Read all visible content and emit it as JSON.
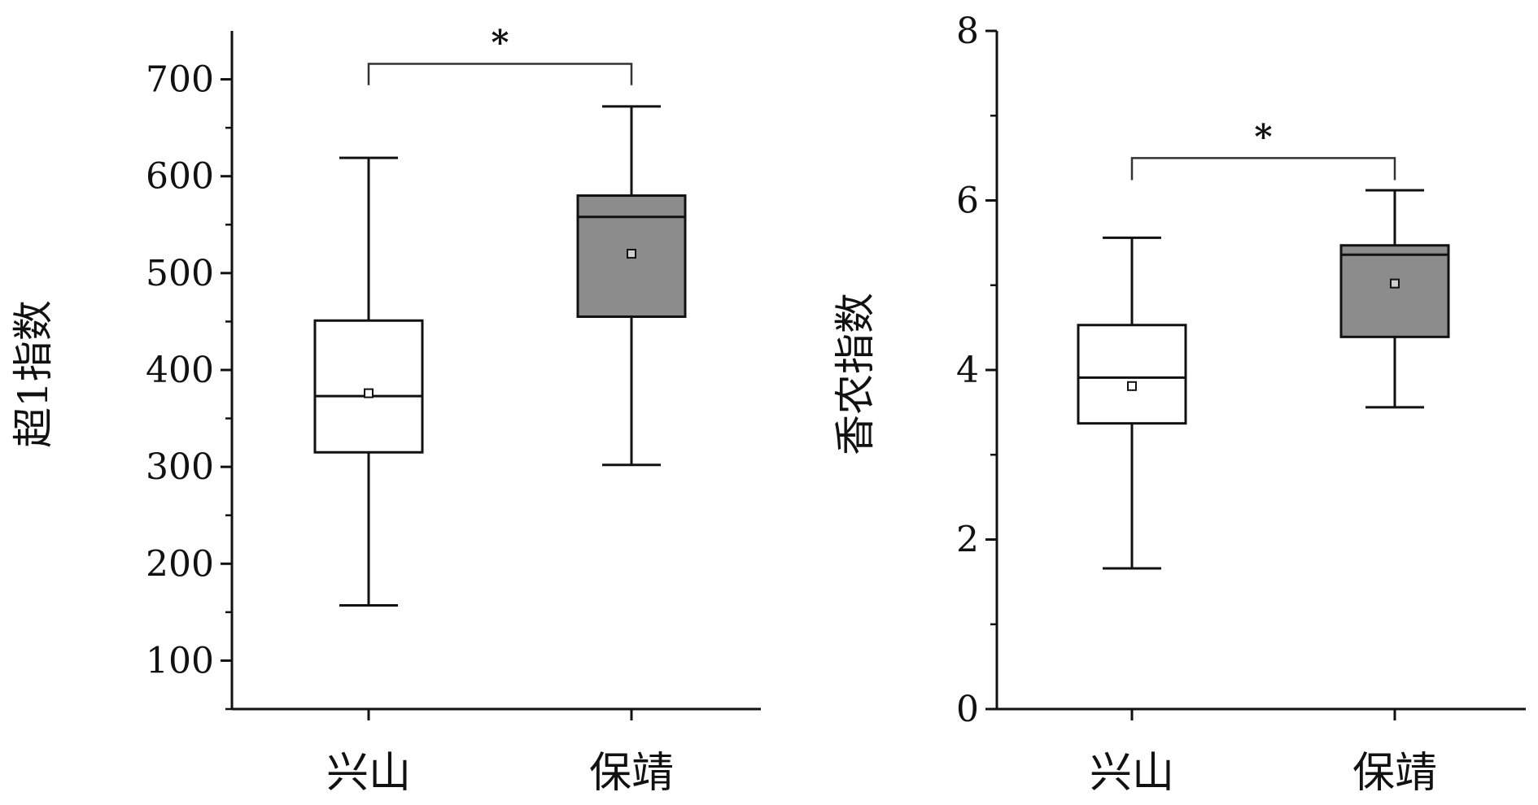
{
  "colors": {
    "axis": "#111111",
    "box_a": "#ffffff",
    "box_b": "#8c8c8c"
  },
  "chart_data": [
    {
      "type": "box",
      "ylabel": "超1指数",
      "ylim": [
        50,
        750
      ],
      "yticks": [
        100,
        200,
        300,
        400,
        500,
        600,
        700
      ],
      "categories": [
        "兴山",
        "保靖"
      ],
      "boxes": [
        {
          "name": "兴山",
          "min": 157,
          "q1": 315,
          "median": 373,
          "q3": 451,
          "max": 619,
          "mean": 376,
          "fill": "#ffffff"
        },
        {
          "name": "保靖",
          "min": 302,
          "q1": 455,
          "median": 558,
          "q3": 580,
          "max": 672,
          "mean": 520,
          "fill": "#8c8c8c"
        }
      ],
      "significance": {
        "from": 0,
        "to": 1,
        "y": 716,
        "drop": 694,
        "label": "*"
      }
    },
    {
      "type": "box",
      "ylabel": "香农指数",
      "ylim": [
        0,
        8
      ],
      "yticks": [
        0,
        2,
        4,
        6,
        8
      ],
      "categories": [
        "兴山",
        "保靖"
      ],
      "boxes": [
        {
          "name": "兴山",
          "min": 1.66,
          "q1": 3.37,
          "median": 3.91,
          "q3": 4.53,
          "max": 5.56,
          "mean": 3.81,
          "fill": "#ffffff"
        },
        {
          "name": "保靖",
          "min": 3.56,
          "q1": 4.39,
          "median": 5.36,
          "q3": 5.47,
          "max": 6.12,
          "mean": 5.02,
          "fill": "#8c8c8c"
        }
      ],
      "significance": {
        "from": 0,
        "to": 1,
        "y": 6.5,
        "drop": 6.24,
        "label": "*"
      }
    }
  ]
}
